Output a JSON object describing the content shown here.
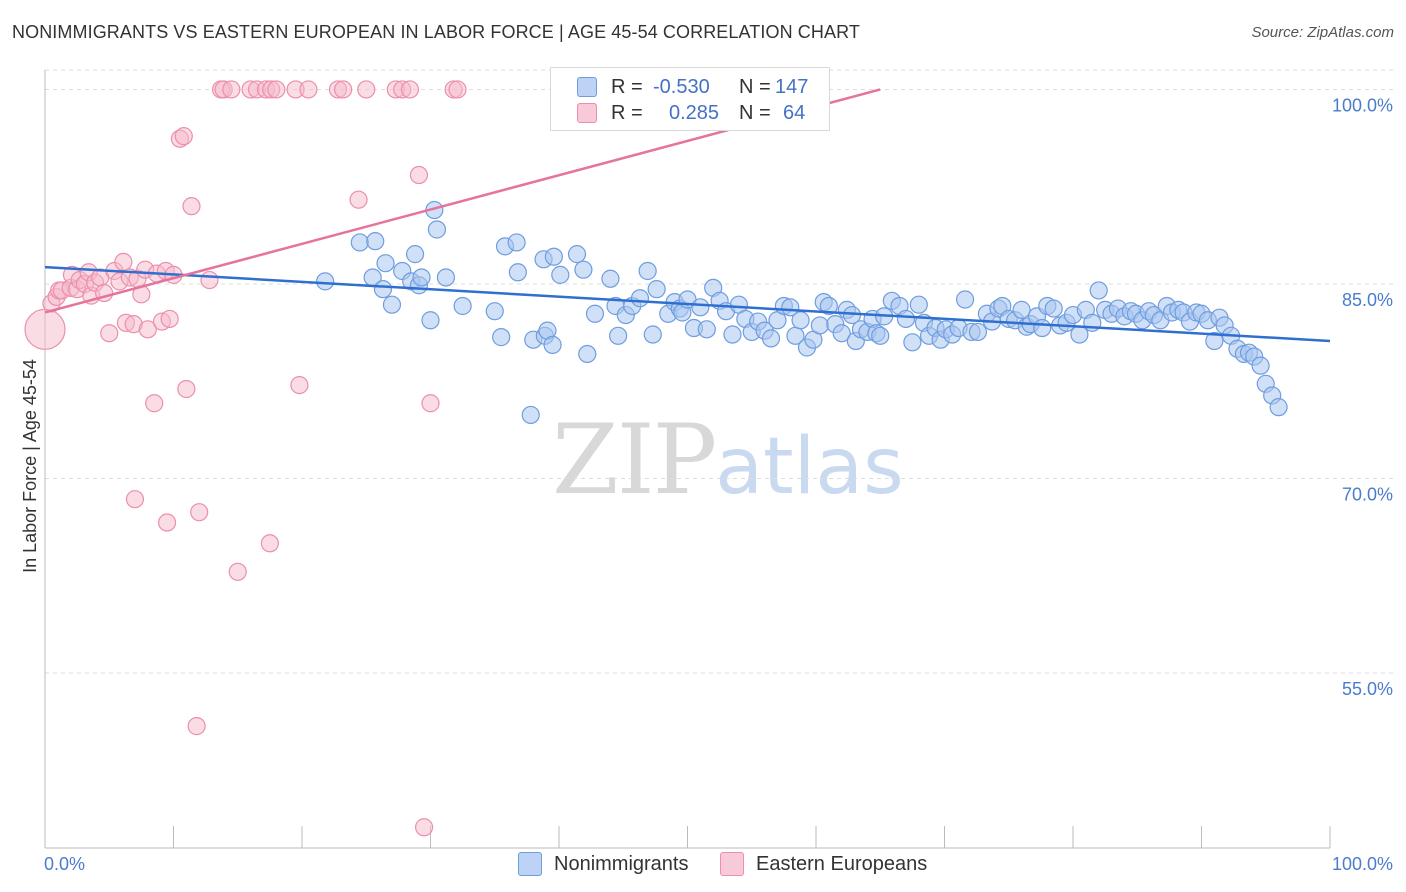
{
  "header": {
    "title": "NONIMMIGRANTS VS EASTERN EUROPEAN IN LABOR FORCE | AGE 45-54 CORRELATION CHART",
    "source": "Source: ZipAtlas.com"
  },
  "watermark": {
    "zip": "ZIP",
    "atlas": "atlas"
  },
  "legend": {
    "rows": [
      {
        "r_label": "R =",
        "r_value": "-0.530",
        "n_label": "N =",
        "n_value": "147"
      },
      {
        "r_label": "R =",
        "r_value": "0.285",
        "n_label": "N =",
        "n_value": "64"
      }
    ]
  },
  "bottom_legend": {
    "series1": "Nonimmigrants",
    "series2": "Eastern Europeans"
  },
  "colors": {
    "blue_fill": "#a9c6f0",
    "blue_stroke": "#6f9ddf",
    "blue_line": "#2f6fd0",
    "pink_fill": "#f6b9cc",
    "pink_stroke": "#ec8fac",
    "pink_line": "#e5739b",
    "grid": "#dcdcdc",
    "tick_label": "#4a7ccc"
  },
  "chart_data": {
    "type": "scatter",
    "title": "NONIMMIGRANTS VS EASTERN EUROPEAN IN LABOR FORCE | AGE 45-54 CORRELATION CHART",
    "ylabel": "In Labor Force | Age 45-54",
    "xlabel": "",
    "x_tick_labels": [
      "0.0%",
      "100.0%"
    ],
    "y_tick_labels": [
      "100.0%",
      "85.0%",
      "70.0%",
      "55.0%"
    ],
    "y_tick_values": [
      100,
      85,
      70,
      55
    ],
    "xlim": [
      0,
      100
    ],
    "ylim": [
      41.5,
      101.5
    ],
    "grid": true,
    "legend_position": "top-center",
    "series": [
      {
        "name": "Nonimmigrants",
        "r": -0.53,
        "n": 147,
        "trend": [
          [
            0,
            86.3
          ],
          [
            100,
            80.6
          ]
        ],
        "points": [
          [
            21.8,
            85.2
          ],
          [
            24.5,
            88.2
          ],
          [
            25.5,
            85.5
          ],
          [
            25.7,
            88.3
          ],
          [
            26.3,
            84.6
          ],
          [
            26.5,
            86.6
          ],
          [
            27,
            83.4
          ],
          [
            27.8,
            86
          ],
          [
            28.5,
            85.2
          ],
          [
            28.8,
            87.3
          ],
          [
            29.1,
            84.9
          ],
          [
            29.3,
            85.5
          ],
          [
            30,
            82.2
          ],
          [
            30.3,
            90.7
          ],
          [
            30.5,
            89.2
          ],
          [
            31.2,
            85.5
          ],
          [
            32.5,
            83.3
          ],
          [
            35,
            82.9
          ],
          [
            35.5,
            80.9
          ],
          [
            35.8,
            87.9
          ],
          [
            36.7,
            88.2
          ],
          [
            36.8,
            85.9
          ],
          [
            38,
            80.7
          ],
          [
            38.8,
            86.9
          ],
          [
            38.9,
            81
          ],
          [
            39.1,
            81.4
          ],
          [
            39.5,
            80.3
          ],
          [
            39.6,
            87.1
          ],
          [
            40.1,
            85.7
          ],
          [
            41.4,
            87.3
          ],
          [
            41.9,
            86.1
          ],
          [
            42.2,
            79.6
          ],
          [
            42.8,
            82.7
          ],
          [
            44,
            85.4
          ],
          [
            44.4,
            83.3
          ],
          [
            44.6,
            81
          ],
          [
            45.2,
            82.6
          ],
          [
            45.7,
            83.3
          ],
          [
            46.3,
            83.9
          ],
          [
            46.9,
            86
          ],
          [
            47.3,
            81.1
          ],
          [
            47.6,
            84.6
          ],
          [
            48.5,
            82.7
          ],
          [
            49,
            83.6
          ],
          [
            49.4,
            83.1
          ],
          [
            49.6,
            82.8
          ],
          [
            50,
            83.8
          ],
          [
            50.5,
            81.6
          ],
          [
            51,
            83.2
          ],
          [
            51.5,
            81.5
          ],
          [
            52,
            84.7
          ],
          [
            52.5,
            83.7
          ],
          [
            53,
            82.9
          ],
          [
            53.5,
            81.1
          ],
          [
            54,
            83.4
          ],
          [
            54.5,
            82.3
          ],
          [
            55,
            81.3
          ],
          [
            55.5,
            82.1
          ],
          [
            56,
            81.4
          ],
          [
            56.5,
            80.8
          ],
          [
            57,
            82.2
          ],
          [
            57.5,
            83.3
          ],
          [
            58,
            83.2
          ],
          [
            58.4,
            81
          ],
          [
            58.8,
            82.2
          ],
          [
            59.3,
            80.1
          ],
          [
            59.8,
            80.7
          ],
          [
            60.3,
            81.8
          ],
          [
            60.6,
            83.6
          ],
          [
            61,
            83.3
          ],
          [
            61.5,
            81.9
          ],
          [
            62,
            81.2
          ],
          [
            62.4,
            83
          ],
          [
            62.8,
            82.6
          ],
          [
            63.1,
            80.6
          ],
          [
            63.5,
            81.5
          ],
          [
            64,
            81.3
          ],
          [
            64.4,
            82.3
          ],
          [
            64.7,
            81.2
          ],
          [
            65,
            81
          ],
          [
            65.3,
            82.5
          ],
          [
            65.9,
            83.7
          ],
          [
            66.5,
            83.3
          ],
          [
            67,
            82.3
          ],
          [
            67.5,
            80.5
          ],
          [
            68,
            83.4
          ],
          [
            68.4,
            82
          ],
          [
            68.8,
            81
          ],
          [
            69.3,
            81.6
          ],
          [
            69.7,
            80.7
          ],
          [
            70.1,
            81.5
          ],
          [
            70.6,
            81.1
          ],
          [
            71.1,
            81.6
          ],
          [
            71.6,
            83.8
          ],
          [
            72.1,
            81.3
          ],
          [
            72.6,
            81.3
          ],
          [
            73.3,
            82.7
          ],
          [
            73.7,
            82.1
          ],
          [
            74.2,
            83.1
          ],
          [
            74.5,
            83.3
          ],
          [
            75,
            82.3
          ],
          [
            75.5,
            82.2
          ],
          [
            76,
            83
          ],
          [
            76.4,
            81.7
          ],
          [
            76.7,
            81.9
          ],
          [
            77.2,
            82.5
          ],
          [
            77.6,
            81.6
          ],
          [
            78,
            83.3
          ],
          [
            78.5,
            83.1
          ],
          [
            79,
            81.8
          ],
          [
            79.5,
            82
          ],
          [
            80,
            82.6
          ],
          [
            80.5,
            81.1
          ],
          [
            81,
            83
          ],
          [
            81.5,
            82
          ],
          [
            82,
            84.5
          ],
          [
            82.5,
            83
          ],
          [
            83,
            82.7
          ],
          [
            83.5,
            83.1
          ],
          [
            84,
            82.5
          ],
          [
            84.5,
            82.9
          ],
          [
            84.9,
            82.7
          ],
          [
            85.4,
            82.2
          ],
          [
            85.9,
            82.9
          ],
          [
            86.3,
            82.6
          ],
          [
            86.8,
            82.2
          ],
          [
            87.3,
            83.3
          ],
          [
            87.7,
            82.8
          ],
          [
            88.2,
            83
          ],
          [
            88.6,
            82.8
          ],
          [
            89.1,
            82.1
          ],
          [
            89.6,
            82.8
          ],
          [
            90,
            82.7
          ],
          [
            90.5,
            82.2
          ],
          [
            91,
            80.6
          ],
          [
            91.4,
            82.4
          ],
          [
            91.8,
            81.8
          ],
          [
            92.3,
            81
          ],
          [
            92.8,
            80
          ],
          [
            93.3,
            79.6
          ],
          [
            93.7,
            79.7
          ],
          [
            94.1,
            79.4
          ],
          [
            94.6,
            78.7
          ],
          [
            95,
            77.3
          ],
          [
            95.5,
            76.4
          ],
          [
            96,
            75.5
          ],
          [
            37.8,
            74.9
          ]
        ]
      },
      {
        "name": "Eastern Europeans",
        "r": 0.285,
        "n": 64,
        "trend": [
          [
            0,
            82.8
          ],
          [
            65,
            100
          ]
        ],
        "points": [
          [
            0,
            81.5
          ],
          [
            0.5,
            83.5
          ],
          [
            0.9,
            84
          ],
          [
            1.1,
            84.5
          ],
          [
            1.3,
            84.5
          ],
          [
            2,
            84.7
          ],
          [
            2.1,
            85.7
          ],
          [
            2.5,
            84.6
          ],
          [
            2.7,
            85.3
          ],
          [
            3.1,
            85
          ],
          [
            3.4,
            85.9
          ],
          [
            3.6,
            84.1
          ],
          [
            3.9,
            85.1
          ],
          [
            4.3,
            85.5
          ],
          [
            4.6,
            84.3
          ],
          [
            5,
            81.2
          ],
          [
            5.4,
            86
          ],
          [
            5.8,
            85.2
          ],
          [
            6.1,
            86.7
          ],
          [
            6.3,
            82
          ],
          [
            6.6,
            85.5
          ],
          [
            6.9,
            81.9
          ],
          [
            7.2,
            85.4
          ],
          [
            7.5,
            84.2
          ],
          [
            7.8,
            86.1
          ],
          [
            8,
            81.5
          ],
          [
            8.5,
            75.8
          ],
          [
            8.7,
            85.8
          ],
          [
            9.1,
            82.1
          ],
          [
            9.4,
            86
          ],
          [
            9.7,
            82.3
          ],
          [
            10,
            85.7
          ],
          [
            10.5,
            96.2
          ],
          [
            10.8,
            96.4
          ],
          [
            11,
            76.9
          ],
          [
            11.4,
            91
          ],
          [
            12.8,
            85.3
          ],
          [
            13.7,
            100
          ],
          [
            13.9,
            100
          ],
          [
            14.5,
            100
          ],
          [
            16,
            100
          ],
          [
            16.5,
            100
          ],
          [
            17.2,
            100
          ],
          [
            17.6,
            100
          ],
          [
            18,
            100
          ],
          [
            19.5,
            100
          ],
          [
            20.5,
            100
          ],
          [
            22.8,
            100
          ],
          [
            23.2,
            100
          ],
          [
            24.4,
            91.5
          ],
          [
            25,
            100
          ],
          [
            27.3,
            100
          ],
          [
            27.8,
            100
          ],
          [
            28.4,
            100
          ],
          [
            29.1,
            93.4
          ],
          [
            30,
            75.8
          ],
          [
            31.8,
            100
          ],
          [
            32.1,
            100
          ],
          [
            44,
            100
          ],
          [
            44.4,
            100
          ],
          [
            55.8,
            100
          ],
          [
            56.5,
            100
          ],
          [
            7,
            68.4
          ],
          [
            9.5,
            66.6
          ],
          [
            12,
            67.4
          ],
          [
            15,
            62.8
          ],
          [
            17.5,
            65
          ],
          [
            19.8,
            77.2
          ],
          [
            11.8,
            50.9
          ],
          [
            29.5,
            43.1
          ]
        ]
      }
    ]
  }
}
